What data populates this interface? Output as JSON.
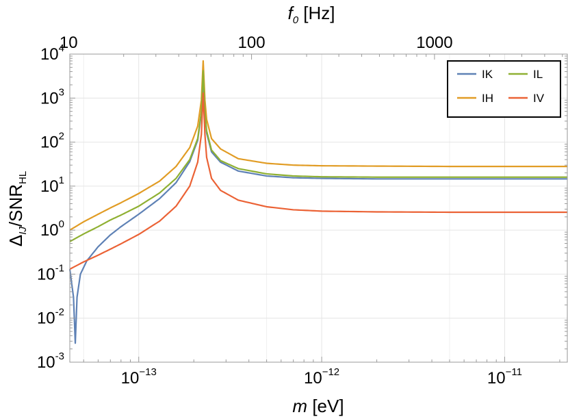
{
  "chart_data": {
    "type": "line",
    "title": "",
    "xlabel": {
      "italic": "m",
      "rest": " [eV]"
    },
    "top_xlabel": {
      "italic": "f",
      "sub": "0",
      "rest": " [Hz]"
    },
    "ylabel": {
      "main": "Δ",
      "sub": "IJ",
      "mid": "/SNR",
      "sub2": "HL"
    },
    "xscale": "log",
    "yscale": "log",
    "xlim": [
      4.2e-14,
      2.2e-11
    ],
    "ylim": [
      0.001,
      10000
    ],
    "grid": true,
    "x_ticks": [
      {
        "value": 1e-13,
        "base": "10",
        "exp": "−13"
      },
      {
        "value": 1e-12,
        "base": "10",
        "exp": "−12"
      },
      {
        "value": 1e-11,
        "base": "10",
        "exp": "−11"
      }
    ],
    "y_ticks": [
      {
        "value": 0.001,
        "base": "10",
        "exp": "-3"
      },
      {
        "value": 0.01,
        "base": "10",
        "exp": "-2"
      },
      {
        "value": 0.1,
        "base": "10",
        "exp": "-1"
      },
      {
        "value": 1,
        "base": "10",
        "exp": "0"
      },
      {
        "value": 10,
        "base": "10",
        "exp": "1"
      },
      {
        "value": 100,
        "base": "10",
        "exp": "2"
      },
      {
        "value": 1000,
        "base": "10",
        "exp": "3"
      },
      {
        "value": 10000,
        "base": "10",
        "exp": "4"
      }
    ],
    "top_ticks": [
      {
        "f": 10,
        "label": "10"
      },
      {
        "f": 100,
        "label": "100"
      },
      {
        "f": 1000,
        "label": "1000"
      }
    ],
    "hz_per_ev": 241800000000000.0,
    "legend_position": "top-right",
    "series": [
      {
        "name": "IK",
        "color": "#5E81B5",
        "x": [
          4.2e-14,
          4.4e-14,
          4.5e-14,
          4.6e-14,
          4.8e-14,
          5.2e-14,
          6e-14,
          7e-14,
          8e-14,
          1e-13,
          1.3e-13,
          1.6e-13,
          1.9e-13,
          2.1e-13,
          2.2e-13,
          2.25e-13,
          2.3e-13,
          2.35e-13,
          2.5e-13,
          2.8e-13,
          3.5e-13,
          5e-13,
          7e-13,
          1e-12,
          2e-12,
          5e-12,
          1e-11,
          2.2e-11
        ],
        "y": [
          0.13,
          0.03,
          0.0027,
          0.03,
          0.1,
          0.2,
          0.42,
          0.78,
          1.2,
          2.3,
          5.2,
          12,
          36,
          110,
          450,
          2300,
          450,
          160,
          60,
          35,
          22,
          17,
          15.5,
          15,
          14.6,
          14.6,
          14.6,
          14.6
        ]
      },
      {
        "name": "IH",
        "color": "#E19C24",
        "x": [
          4.2e-14,
          5e-14,
          6e-14,
          7e-14,
          8e-14,
          1e-13,
          1.3e-13,
          1.6e-13,
          1.9e-13,
          2.1e-13,
          2.2e-13,
          2.25e-13,
          2.3e-13,
          2.35e-13,
          2.5e-13,
          2.8e-13,
          3.5e-13,
          5e-13,
          7e-13,
          1e-12,
          2e-12,
          5e-12,
          1e-11,
          2.2e-11
        ],
        "y": [
          1.0,
          1.55,
          2.3,
          3.2,
          4.2,
          6.8,
          13,
          28,
          75,
          230,
          900,
          7000,
          900,
          330,
          120,
          70,
          42,
          33,
          30,
          29,
          28.5,
          28,
          28,
          28
        ]
      },
      {
        "name": "IL",
        "color": "#8FB032",
        "x": [
          4.2e-14,
          5e-14,
          6e-14,
          7e-14,
          8e-14,
          1e-13,
          1.3e-13,
          1.6e-13,
          1.9e-13,
          2.1e-13,
          2.2e-13,
          2.25e-13,
          2.3e-13,
          2.35e-13,
          2.5e-13,
          2.8e-13,
          3.5e-13,
          5e-13,
          7e-13,
          1e-12,
          2e-12,
          5e-12,
          1e-11,
          2.2e-11
        ],
        "y": [
          0.55,
          0.82,
          1.2,
          1.7,
          2.2,
          3.5,
          7,
          15,
          40,
          120,
          500,
          4200,
          500,
          180,
          66,
          38,
          25,
          19,
          17,
          16.3,
          16,
          16,
          16,
          16
        ]
      },
      {
        "name": "IV",
        "color": "#EB6235",
        "x": [
          4.2e-14,
          5e-14,
          6e-14,
          7e-14,
          8e-14,
          1e-13,
          1.3e-13,
          1.6e-13,
          1.9e-13,
          2.1e-13,
          2.2e-13,
          2.25e-13,
          2.3e-13,
          2.35e-13,
          2.5e-13,
          2.8e-13,
          3.5e-13,
          5e-13,
          7e-13,
          1e-12,
          2e-12,
          5e-12,
          1e-11,
          2.2e-11
        ],
        "y": [
          0.13,
          0.19,
          0.27,
          0.37,
          0.49,
          0.8,
          1.6,
          3.5,
          10,
          35,
          150,
          1300,
          150,
          45,
          15,
          8,
          4.8,
          3.4,
          2.9,
          2.7,
          2.6,
          2.55,
          2.55,
          2.55
        ]
      }
    ]
  }
}
